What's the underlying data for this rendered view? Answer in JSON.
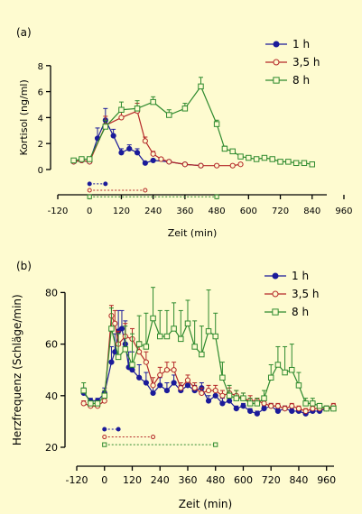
{
  "colors": {
    "background": "#fefbd0",
    "series_1h": "#1b1b9a",
    "series_3_5h": "#b42828",
    "series_8h": "#2e8a2e",
    "axis": "#000000"
  },
  "chart_data": [
    {
      "type": "line",
      "panel_label": "(a)",
      "xlabel": "Zeit (min)",
      "ylabel": "Kortisol (ng/ml)",
      "xlim": [
        -120,
        960
      ],
      "ylim": [
        0,
        8
      ],
      "xticks": [
        -120,
        0,
        120,
        240,
        360,
        480,
        600,
        720,
        840,
        960
      ],
      "yticks": [
        0,
        2,
        4,
        6,
        8
      ],
      "legend_position": "top-right",
      "series": [
        {
          "name": "1 h",
          "color_key": "series_1h",
          "marker": "filled-circle",
          "x": [
            -60,
            -30,
            0,
            30,
            60,
            90,
            120,
            150,
            180,
            210,
            240,
            300,
            360,
            420
          ],
          "y": [
            0.6,
            0.7,
            0.6,
            2.4,
            3.8,
            2.6,
            1.3,
            1.6,
            1.3,
            0.5,
            0.7,
            0.6,
            0.4,
            0.3
          ],
          "err": [
            0.1,
            0.1,
            0.1,
            0.8,
            0.9,
            0.5,
            0.3,
            0.3,
            0.3,
            0.1,
            0.1,
            0.1,
            0.1,
            0.1
          ]
        },
        {
          "name": "3,5 h",
          "color_key": "series_3_5h",
          "marker": "open-circle",
          "x": [
            -60,
            -30,
            0,
            60,
            120,
            180,
            210,
            240,
            270,
            300,
            360,
            420,
            480,
            540,
            570
          ],
          "y": [
            0.6,
            0.7,
            0.6,
            3.4,
            4.0,
            4.5,
            2.2,
            1.2,
            0.8,
            0.6,
            0.4,
            0.3,
            0.3,
            0.3,
            0.4
          ],
          "err": [
            0.1,
            0.1,
            0.1,
            0.7,
            0.6,
            0.6,
            0.3,
            0.2,
            0.1,
            0.1,
            0.1,
            0.1,
            0.1,
            0.1,
            0.1
          ]
        },
        {
          "name": "8 h",
          "color_key": "series_8h",
          "marker": "open-square",
          "x": [
            -60,
            -30,
            0,
            60,
            120,
            180,
            240,
            300,
            360,
            420,
            480,
            510,
            540,
            570,
            600,
            630,
            660,
            690,
            720,
            750,
            780,
            810,
            840
          ],
          "y": [
            0.7,
            0.8,
            0.8,
            3.3,
            4.6,
            4.7,
            5.2,
            4.2,
            4.7,
            6.4,
            3.5,
            1.6,
            1.4,
            1.0,
            0.9,
            0.8,
            0.9,
            0.8,
            0.6,
            0.6,
            0.5,
            0.5,
            0.4
          ],
          "err": [
            0.1,
            0.1,
            0.1,
            0.5,
            0.6,
            0.6,
            0.4,
            0.4,
            0.4,
            0.7,
            0.3,
            0.2,
            0.1,
            0.1,
            0.1,
            0.1,
            0.1,
            0.1,
            0.1,
            0.1,
            0.1,
            0.1,
            0.1
          ]
        }
      ],
      "duration_bars": [
        {
          "series_key": "series_1h",
          "start": 0,
          "end": 60,
          "y": -1.1,
          "start_marker": "filled-circle",
          "end_marker": "filled-circle"
        },
        {
          "series_key": "series_3_5h",
          "start": 0,
          "end": 210,
          "y": -1.6,
          "start_marker": "open-circle",
          "end_marker": "open-circle"
        },
        {
          "series_key": "series_8h",
          "start": 0,
          "end": 480,
          "y": -2.1,
          "start_marker": "open-square",
          "end_marker": "open-square"
        }
      ]
    },
    {
      "type": "line",
      "panel_label": "(b)",
      "xlabel": "Zeit (min)",
      "ylabel": "Herzfrequenz (Schläge/min)",
      "xlim": [
        -120,
        1000
      ],
      "ylim": [
        20,
        80
      ],
      "xticks": [
        -120,
        0,
        120,
        240,
        360,
        480,
        600,
        720,
        840,
        960
      ],
      "yticks": [
        20,
        40,
        60,
        80
      ],
      "legend_position": "top-right",
      "series": [
        {
          "name": "1 h",
          "color_key": "series_1h",
          "marker": "filled-circle",
          "x": [
            -90,
            -60,
            -30,
            0,
            30,
            45,
            60,
            75,
            90,
            105,
            120,
            150,
            180,
            210,
            240,
            270,
            300,
            330,
            360,
            390,
            420,
            450,
            480,
            510,
            540,
            570,
            600,
            630,
            660,
            690,
            720,
            750,
            780,
            810,
            840,
            870,
            900,
            930,
            960,
            990
          ],
          "y": [
            41,
            38,
            38,
            41,
            53,
            57,
            65,
            66,
            60,
            51,
            50,
            47,
            45,
            41,
            44,
            42,
            45,
            42,
            44,
            42,
            43,
            38,
            40,
            37,
            38,
            35,
            36,
            34,
            33,
            35,
            36,
            34,
            35,
            34,
            34,
            33,
            34,
            34,
            35,
            35
          ],
          "err": [
            2,
            1,
            1,
            2,
            6,
            7,
            8,
            7,
            9,
            6,
            7,
            5,
            4,
            3,
            3,
            3,
            3,
            2,
            2,
            2,
            2,
            2,
            2,
            2,
            2,
            1,
            1,
            1,
            1,
            1,
            1,
            1,
            1,
            1,
            1,
            1,
            1,
            1,
            1,
            1
          ]
        },
        {
          "name": "3,5 h",
          "color_key": "series_3_5h",
          "marker": "open-circle",
          "x": [
            -90,
            -60,
            -30,
            0,
            30,
            45,
            60,
            90,
            120,
            150,
            180,
            210,
            240,
            270,
            300,
            330,
            360,
            390,
            420,
            450,
            480,
            510,
            540,
            570,
            600,
            630,
            660,
            690,
            720,
            750,
            780,
            810,
            840,
            870,
            900,
            930,
            960,
            990
          ],
          "y": [
            37,
            36,
            36,
            38,
            71,
            68,
            60,
            63,
            62,
            57,
            53,
            44,
            48,
            50,
            50,
            43,
            46,
            43,
            41,
            42,
            42,
            40,
            41,
            40,
            39,
            38,
            38,
            37,
            36,
            36,
            35,
            36,
            35,
            34,
            35,
            35,
            35,
            36
          ],
          "err": [
            1,
            1,
            1,
            2,
            4,
            5,
            5,
            5,
            4,
            4,
            4,
            3,
            3,
            3,
            3,
            2,
            2,
            2,
            2,
            2,
            2,
            2,
            2,
            2,
            2,
            2,
            1,
            1,
            1,
            1,
            1,
            1,
            1,
            1,
            1,
            1,
            1,
            1
          ]
        },
        {
          "name": "8 h",
          "color_key": "series_8h",
          "marker": "open-square",
          "x": [
            -90,
            -60,
            -30,
            0,
            30,
            60,
            90,
            120,
            150,
            180,
            210,
            240,
            270,
            300,
            330,
            360,
            390,
            420,
            450,
            480,
            510,
            540,
            570,
            600,
            630,
            660,
            690,
            720,
            750,
            780,
            810,
            840,
            870,
            900,
            930,
            960,
            990
          ],
          "y": [
            42,
            37,
            37,
            40,
            66,
            55,
            58,
            52,
            60,
            59,
            70,
            63,
            63,
            66,
            62,
            68,
            59,
            56,
            65,
            63,
            47,
            40,
            39,
            39,
            37,
            37,
            39,
            47,
            52,
            49,
            50,
            44,
            37,
            37,
            36,
            35,
            35
          ],
          "err": [
            3,
            1,
            1,
            2,
            8,
            9,
            9,
            12,
            11,
            13,
            12,
            10,
            10,
            10,
            11,
            9,
            10,
            11,
            16,
            9,
            6,
            4,
            3,
            2,
            2,
            2,
            3,
            5,
            7,
            10,
            10,
            5,
            2,
            2,
            1,
            1,
            1
          ]
        }
      ],
      "duration_bars": [
        {
          "series_key": "series_1h",
          "start": 0,
          "end": 60,
          "y": 27,
          "start_marker": "filled-circle",
          "end_marker": "filled-circle"
        },
        {
          "series_key": "series_3_5h",
          "start": 0,
          "end": 210,
          "y": 24,
          "start_marker": "open-circle",
          "end_marker": "open-circle"
        },
        {
          "series_key": "series_8h",
          "start": 0,
          "end": 480,
          "y": 21,
          "start_marker": "open-square",
          "end_marker": "open-square"
        }
      ]
    }
  ]
}
